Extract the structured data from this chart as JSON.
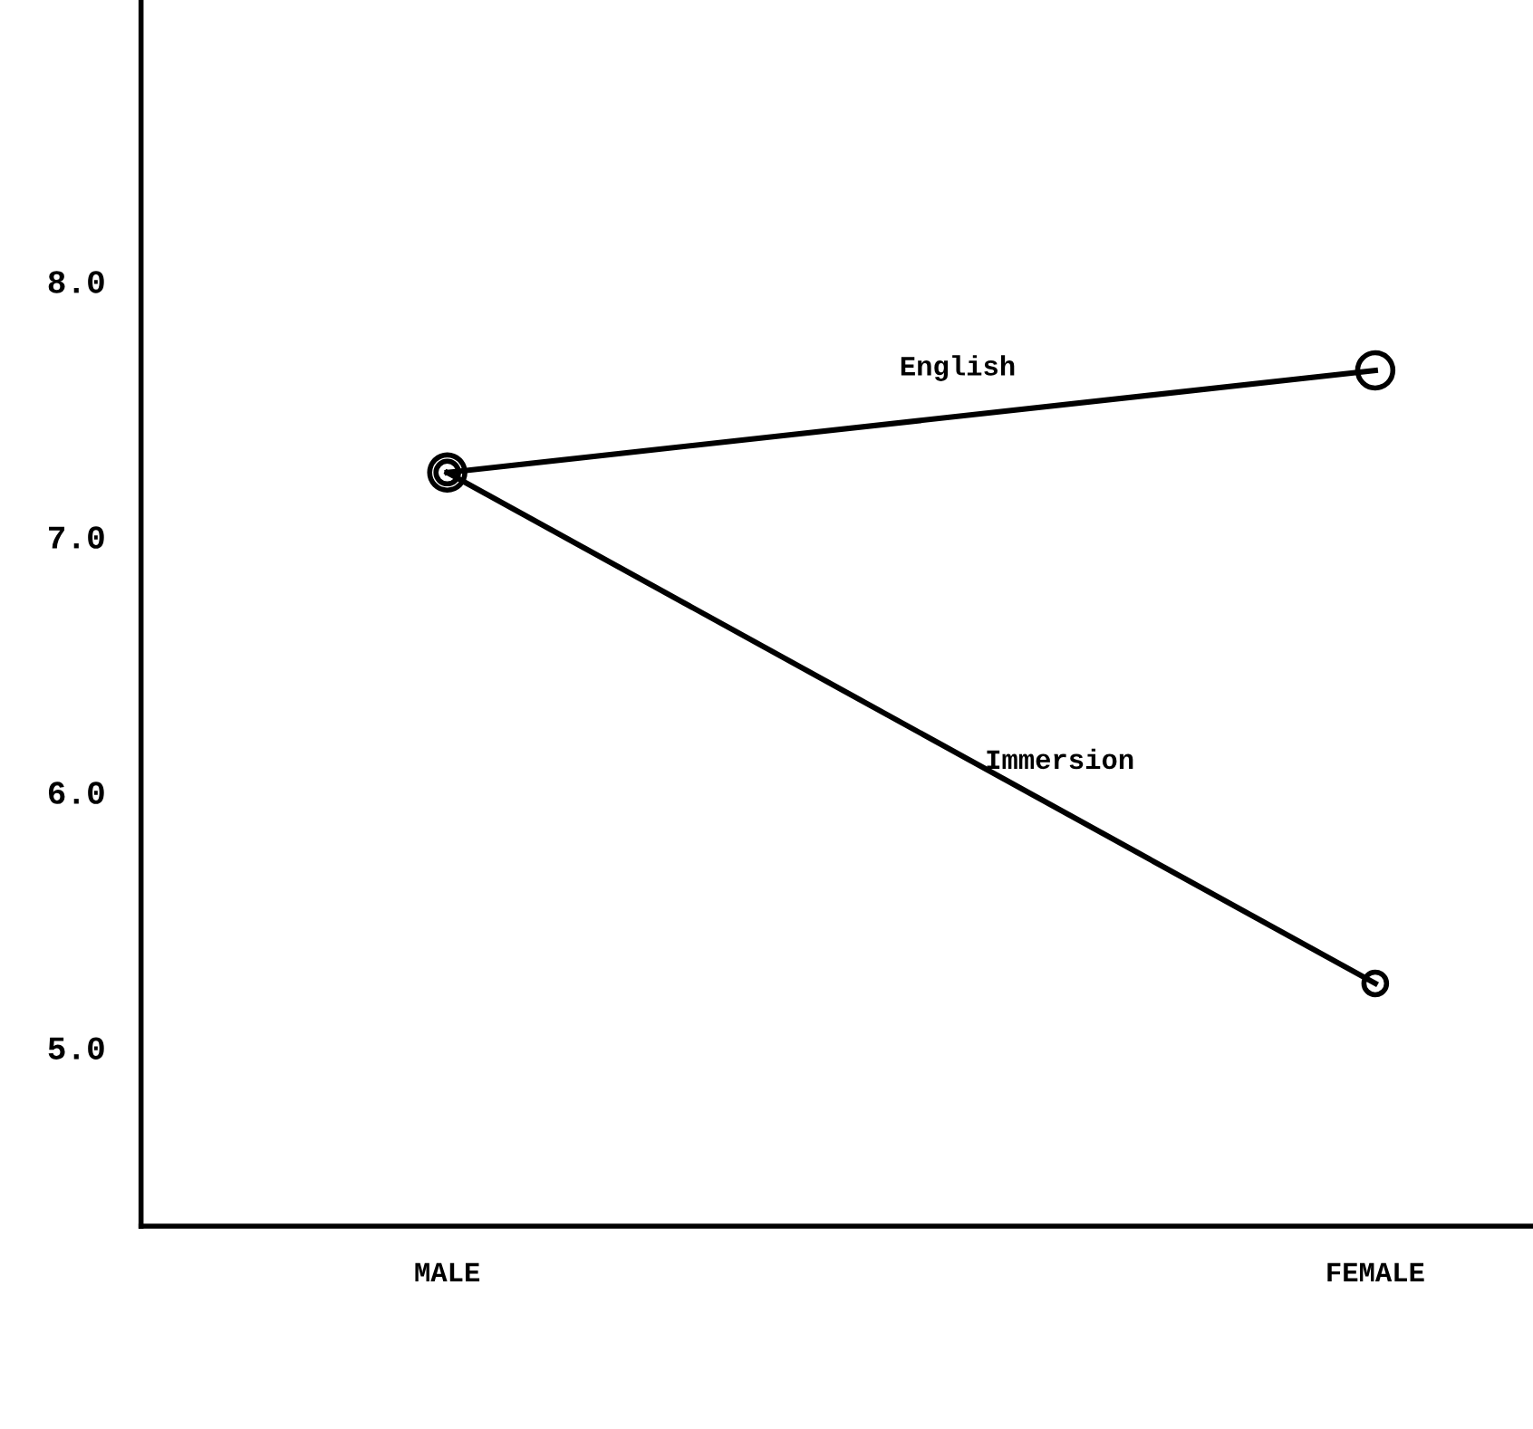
{
  "chart_data": {
    "type": "line",
    "categories": [
      "MALE",
      "FEMALE"
    ],
    "series": [
      {
        "name": "English",
        "color": "#000000",
        "values": [
          7.25,
          7.65
        ]
      },
      {
        "name": "Immersion",
        "color": "#000000",
        "values": [
          7.25,
          5.25
        ]
      }
    ],
    "ylim": [
      4.3,
      9.1
    ],
    "yticks": [
      {
        "value": 5,
        "label": "5.0"
      },
      {
        "value": 6,
        "label": "6.0"
      },
      {
        "value": 7,
        "label": "7.0"
      },
      {
        "value": 8,
        "label": "8.0"
      }
    ],
    "marker": "circle",
    "line_style": "solid",
    "grid": false,
    "legend": false
  }
}
